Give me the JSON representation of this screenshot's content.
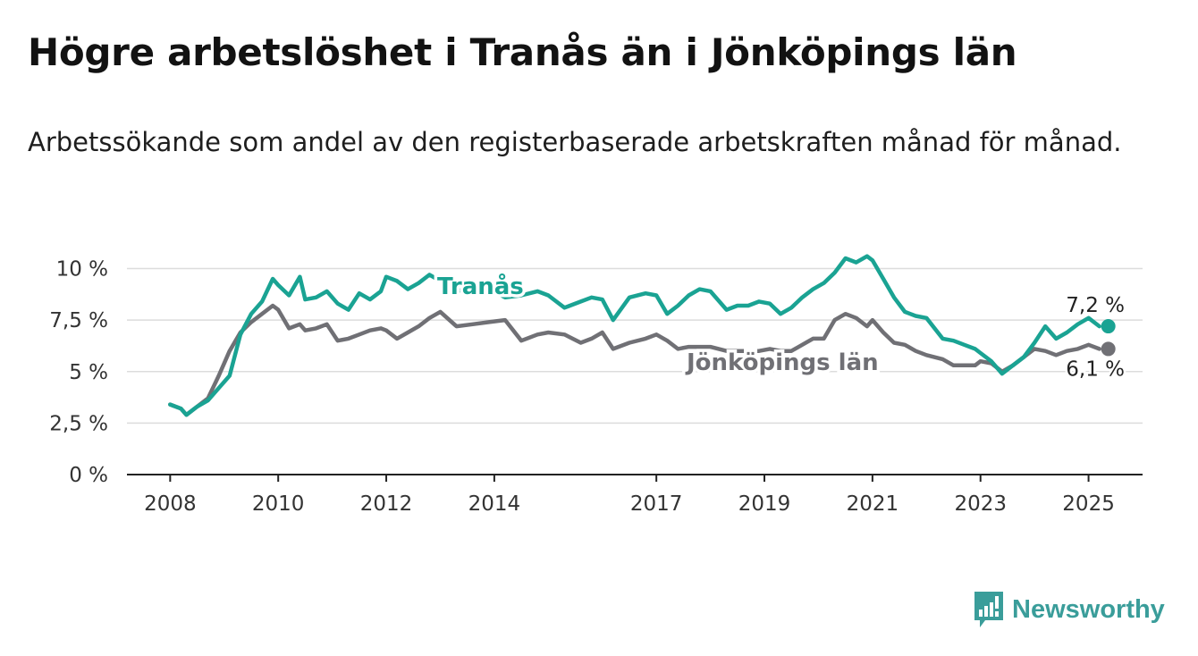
{
  "title": "Högre arbetslöshet i Tranås än i Jönköpings län",
  "subtitle": "Arbetssökande som andel av den registerbaserade arbetskraften månad för månad.",
  "brand": {
    "name": "Newsworthy",
    "icon": "bar-chart-logo-icon",
    "color": "#3a9d9a"
  },
  "chart_data": {
    "type": "line",
    "y_ticks": [
      "0 %",
      "2,5 %",
      "5 %",
      "7,5 %",
      "10 %"
    ],
    "y_tick_values": [
      0,
      2.5,
      5,
      7.5,
      10
    ],
    "x_ticks": [
      "2008",
      "2010",
      "2012",
      "2014",
      "2017",
      "2019",
      "2021",
      "2023",
      "2025"
    ],
    "x_tick_values": [
      2008,
      2010,
      2012,
      2014,
      2017,
      2019,
      2021,
      2023,
      2025
    ],
    "xlim": [
      2007.2,
      2026.0
    ],
    "ylim": [
      0,
      10.5
    ],
    "grid": true,
    "legend": "inline labels",
    "series": [
      {
        "name": "Tranås",
        "color": "#1aa393",
        "end_label": "7,2 %",
        "x": [
          2008.0,
          2008.2,
          2008.3,
          2008.5,
          2008.7,
          2008.9,
          2009.1,
          2009.3,
          2009.5,
          2009.7,
          2009.9,
          2010.0,
          2010.2,
          2010.4,
          2010.5,
          2010.7,
          2010.9,
          2011.1,
          2011.3,
          2011.5,
          2011.7,
          2011.9,
          2012.0,
          2012.2,
          2012.4,
          2012.6,
          2012.8,
          2013.0,
          2013.3,
          2013.6,
          2013.9,
          2014.2,
          2014.5,
          2014.8,
          2015.0,
          2015.3,
          2015.6,
          2015.8,
          2016.0,
          2016.2,
          2016.5,
          2016.8,
          2017.0,
          2017.2,
          2017.4,
          2017.6,
          2017.8,
          2018.0,
          2018.3,
          2018.5,
          2018.7,
          2018.9,
          2019.1,
          2019.3,
          2019.5,
          2019.7,
          2019.9,
          2020.1,
          2020.3,
          2020.5,
          2020.7,
          2020.9,
          2021.0,
          2021.2,
          2021.4,
          2021.6,
          2021.8,
          2022.0,
          2022.3,
          2022.5,
          2022.7,
          2022.9,
          2023.0,
          2023.2,
          2023.4,
          2023.6,
          2023.8,
          2024.0,
          2024.2,
          2024.4,
          2024.6,
          2024.8,
          2025.0,
          2025.2
        ],
        "values": [
          3.4,
          3.2,
          2.9,
          3.3,
          3.6,
          4.2,
          4.8,
          6.8,
          7.8,
          8.4,
          9.5,
          9.2,
          8.7,
          9.6,
          8.5,
          8.6,
          8.9,
          8.3,
          8.0,
          8.8,
          8.5,
          8.9,
          9.6,
          9.4,
          9.0,
          9.3,
          9.7,
          9.4,
          8.9,
          9.1,
          9.0,
          8.6,
          8.7,
          8.9,
          8.7,
          8.1,
          8.4,
          8.6,
          8.5,
          7.5,
          8.6,
          8.8,
          8.7,
          7.8,
          8.2,
          8.7,
          9.0,
          8.9,
          8.0,
          8.2,
          8.2,
          8.4,
          8.3,
          7.8,
          8.1,
          8.6,
          9.0,
          9.3,
          9.8,
          10.5,
          10.3,
          10.6,
          10.4,
          9.5,
          8.6,
          7.9,
          7.7,
          7.6,
          6.6,
          6.5,
          6.3,
          6.1,
          5.9,
          5.5,
          4.9,
          5.3,
          5.7,
          6.4,
          7.2,
          6.6,
          6.9,
          7.3,
          7.6,
          7.2
        ]
      },
      {
        "name": "Jönköpings län",
        "color": "#707075",
        "end_label": "6,1 %",
        "x": [
          2008.0,
          2008.2,
          2008.3,
          2008.5,
          2008.7,
          2008.9,
          2009.1,
          2009.3,
          2009.5,
          2009.7,
          2009.9,
          2010.0,
          2010.2,
          2010.4,
          2010.5,
          2010.7,
          2010.9,
          2011.1,
          2011.3,
          2011.5,
          2011.7,
          2011.9,
          2012.0,
          2012.2,
          2012.4,
          2012.6,
          2012.8,
          2013.0,
          2013.3,
          2013.6,
          2013.9,
          2014.2,
          2014.5,
          2014.8,
          2015.0,
          2015.3,
          2015.6,
          2015.8,
          2016.0,
          2016.2,
          2016.5,
          2016.8,
          2017.0,
          2017.2,
          2017.4,
          2017.6,
          2017.8,
          2018.0,
          2018.3,
          2018.5,
          2018.7,
          2018.9,
          2019.1,
          2019.3,
          2019.5,
          2019.7,
          2019.9,
          2020.1,
          2020.3,
          2020.5,
          2020.7,
          2020.9,
          2021.0,
          2021.2,
          2021.4,
          2021.6,
          2021.8,
          2022.0,
          2022.3,
          2022.5,
          2022.7,
          2022.9,
          2023.0,
          2023.2,
          2023.4,
          2023.6,
          2023.8,
          2024.0,
          2024.2,
          2024.4,
          2024.6,
          2024.8,
          2025.0,
          2025.2
        ],
        "values": [
          3.4,
          3.2,
          2.9,
          3.3,
          3.7,
          4.8,
          6.0,
          6.9,
          7.4,
          7.8,
          8.2,
          8.0,
          7.1,
          7.3,
          7.0,
          7.1,
          7.3,
          6.5,
          6.6,
          6.8,
          7.0,
          7.1,
          7.0,
          6.6,
          6.9,
          7.2,
          7.6,
          7.9,
          7.2,
          7.3,
          7.4,
          7.5,
          6.5,
          6.8,
          6.9,
          6.8,
          6.4,
          6.6,
          6.9,
          6.1,
          6.4,
          6.6,
          6.8,
          6.5,
          6.1,
          6.2,
          6.2,
          6.2,
          6.0,
          6.0,
          6.0,
          6.0,
          6.1,
          6.0,
          6.0,
          6.3,
          6.6,
          6.6,
          7.5,
          7.8,
          7.6,
          7.2,
          7.5,
          6.9,
          6.4,
          6.3,
          6.0,
          5.8,
          5.6,
          5.3,
          5.3,
          5.3,
          5.5,
          5.4,
          5.0,
          5.3,
          5.7,
          6.1,
          6.0,
          5.8,
          6.0,
          6.1,
          6.3,
          6.1
        ]
      }
    ]
  }
}
